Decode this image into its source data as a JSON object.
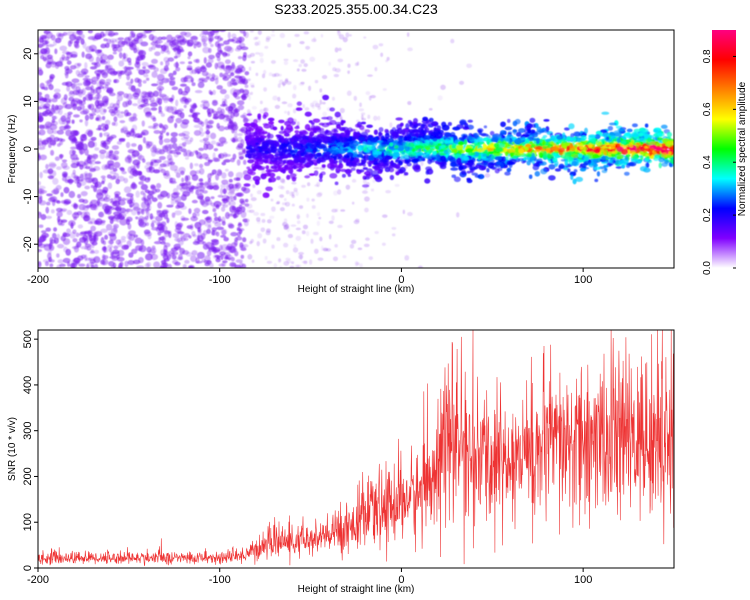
{
  "figure_title": "S233.2025.355.00.34.C23",
  "chart_data": [
    {
      "type": "heatmap",
      "title": "S233.2025.355.00.34.C23",
      "xlabel": "Height of straight line (km)",
      "ylabel": "Frequency (Hz)",
      "xlim": [
        -200,
        150
      ],
      "ylim": [
        -25,
        25
      ],
      "x_ticks": [
        -200,
        -100,
        0,
        100
      ],
      "y_ticks": [
        -20,
        -10,
        0,
        10,
        20
      ],
      "x_tick_labels": [
        "-200",
        "-100",
        "0",
        "100"
      ],
      "y_tick_labels": [
        "-20",
        "-10",
        "0",
        "10",
        "20"
      ],
      "colorbar": {
        "label": "Normalized spectral amplitude",
        "range": [
          0,
          0.9
        ],
        "ticks": [
          0.0,
          0.2,
          0.4,
          0.6,
          0.8
        ],
        "tick_labels": [
          "0.0",
          "0.2",
          "0.4",
          "0.6",
          "0.8"
        ],
        "colormap": [
          "#ffffff",
          "#8000ff",
          "#0000ff",
          "#00ffff",
          "#00ff00",
          "#ffff00",
          "#ff8000",
          "#ff0000",
          "#ff0080"
        ]
      },
      "regions": [
        {
          "x_range": [
            -200,
            -85
          ],
          "description": "broadband noise",
          "freq_range": [
            -25,
            25
          ],
          "amplitude": 0.05
        },
        {
          "x_range": [
            -85,
            150
          ],
          "center_freq": 0,
          "width_hz": 5,
          "amplitude_start": 0.1,
          "amplitude_end": 0.85
        }
      ]
    },
    {
      "type": "line",
      "xlabel": "Height of straight line (km)",
      "ylabel": "SNR (10 * v/v)",
      "xlim": [
        -200,
        150
      ],
      "ylim": [
        0,
        520
      ],
      "x_ticks": [
        -200,
        -100,
        0,
        100
      ],
      "y_ticks": [
        0,
        100,
        200,
        300,
        400,
        500
      ],
      "x_tick_labels": [
        "-200",
        "-100",
        "0",
        "100"
      ],
      "y_tick_labels": [
        "0",
        "100",
        "200",
        "300",
        "400",
        "500"
      ],
      "color": "#ee3333",
      "series": [
        {
          "name": "SNR",
          "x": [
            -200,
            -150,
            -100,
            -90,
            -80,
            -70,
            -60,
            -50,
            -40,
            -30,
            -20,
            -10,
            0,
            10,
            15,
            20,
            30,
            40,
            60,
            80,
            100,
            120,
            150
          ],
          "values": [
            22,
            22,
            22,
            25,
            40,
            60,
            55,
            60,
            70,
            90,
            110,
            130,
            150,
            160,
            180,
            260,
            280,
            230,
            240,
            260,
            270,
            280,
            290
          ]
        }
      ]
    }
  ]
}
